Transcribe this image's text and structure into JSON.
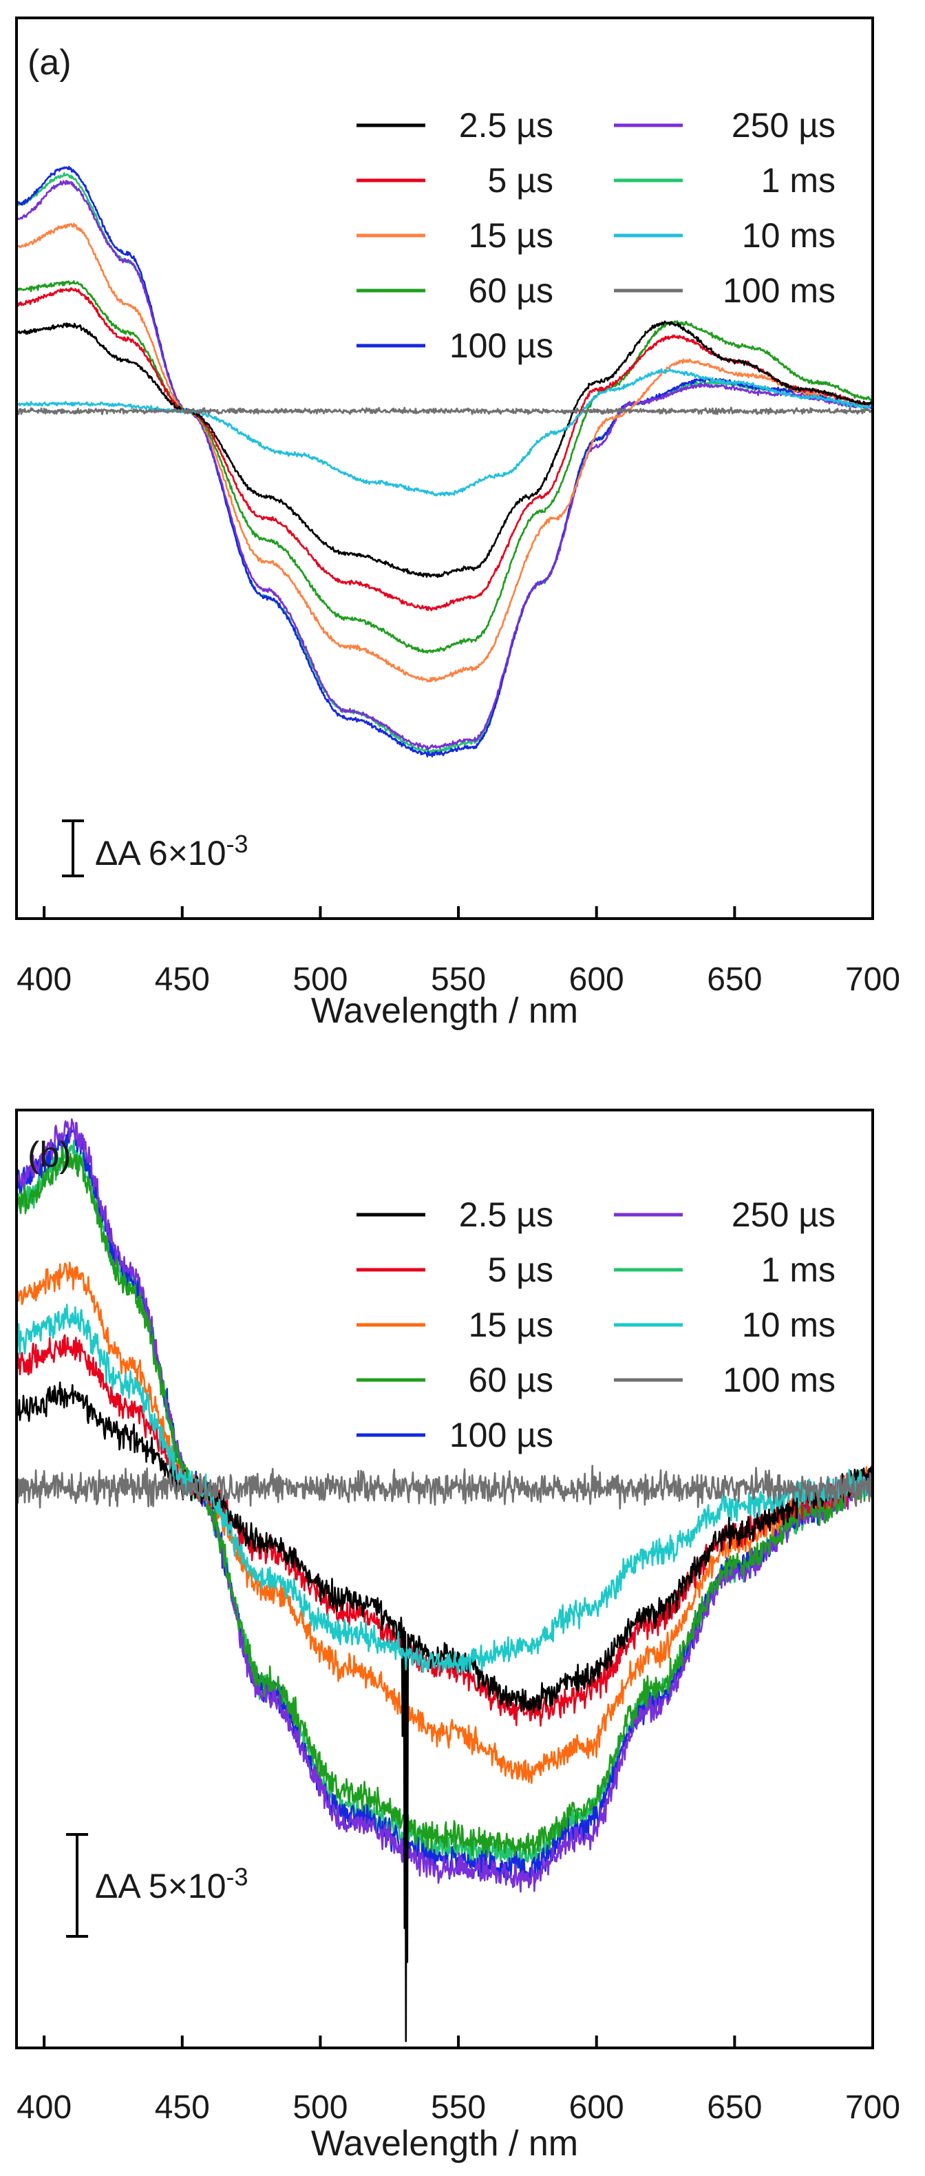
{
  "chart_data": [
    {
      "type": "line",
      "panel_label": "(a)",
      "xlabel": "Wavelength / nm",
      "ylabel": "",
      "xlim": [
        390,
        700
      ],
      "ylim": [
        -0.0355,
        0.0275
      ],
      "x_ticks": [
        400,
        450,
        500,
        550,
        600,
        650,
        700
      ],
      "x_tick_labels": [
        "400",
        "450",
        "500",
        "550",
        "600",
        "650",
        "700"
      ],
      "grid": false,
      "legend_position": "top-right",
      "scale_bar": {
        "label_prefix": "ΔA 6×10",
        "label_exponent": "-3",
        "value": 0.006
      },
      "series": [
        {
          "name": "2.5 µs",
          "color": "#000000",
          "noise": 0.00012,
          "points": [
            [
              390,
              0.0055
            ],
            [
              410,
              0.006
            ],
            [
              430,
              0.0035
            ],
            [
              452,
              0.0
            ],
            [
              480,
              -0.006
            ],
            [
              510,
              -0.01
            ],
            [
              540,
              -0.0115
            ],
            [
              555,
              -0.011
            ],
            [
              575,
              -0.006
            ],
            [
              600,
              0.002
            ],
            [
              625,
              0.0062
            ],
            [
              650,
              0.0035
            ],
            [
              675,
              0.0015
            ],
            [
              700,
              0.0005
            ]
          ]
        },
        {
          "name": "5 µs",
          "color": "#e8001c",
          "noise": 0.00012,
          "points": [
            [
              390,
              0.0075
            ],
            [
              410,
              0.0085
            ],
            [
              430,
              0.005
            ],
            [
              452,
              0.0
            ],
            [
              480,
              -0.0075
            ],
            [
              510,
              -0.012
            ],
            [
              540,
              -0.0138
            ],
            [
              555,
              -0.013
            ],
            [
              580,
              -0.006
            ],
            [
              600,
              0.0015
            ],
            [
              628,
              0.0052
            ],
            [
              650,
              0.0035
            ],
            [
              675,
              0.0015
            ],
            [
              700,
              0.0005
            ]
          ]
        },
        {
          "name": "15 µs",
          "color": "#ff8040",
          "noise": 0.00012,
          "points": [
            [
              390,
              0.0115
            ],
            [
              410,
              0.013
            ],
            [
              430,
              0.0075
            ],
            [
              452,
              0.0
            ],
            [
              480,
              -0.0105
            ],
            [
              510,
              -0.0165
            ],
            [
              540,
              -0.0188
            ],
            [
              555,
              -0.018
            ],
            [
              585,
              -0.0075
            ],
            [
              605,
              -0.0005
            ],
            [
              632,
              0.0035
            ],
            [
              655,
              0.0025
            ],
            [
              680,
              0.0012
            ],
            [
              700,
              0.0005
            ]
          ]
        },
        {
          "name": "60 µs",
          "color": "#1e9e1e",
          "noise": 0.00012,
          "points": [
            [
              390,
              0.0085
            ],
            [
              410,
              0.009
            ],
            [
              430,
              0.0055
            ],
            [
              452,
              0.0
            ],
            [
              480,
              -0.009
            ],
            [
              510,
              -0.0145
            ],
            [
              540,
              -0.0168
            ],
            [
              555,
              -0.016
            ],
            [
              580,
              -0.007
            ],
            [
              603,
              0.0015
            ],
            [
              628,
              0.0062
            ],
            [
              655,
              0.0045
            ],
            [
              680,
              0.002
            ],
            [
              700,
              0.0008
            ]
          ]
        },
        {
          "name": "100 µs",
          "color": "#1528e0",
          "noise": 0.00012,
          "points": [
            [
              390,
              0.0145
            ],
            [
              408,
              0.017
            ],
            [
              430,
              0.011
            ],
            [
              452,
              0.0
            ],
            [
              480,
              -0.013
            ],
            [
              510,
              -0.0215
            ],
            [
              540,
              -0.024
            ],
            [
              555,
              -0.0235
            ],
            [
              580,
              -0.012
            ],
            [
              600,
              -0.002
            ],
            [
              612,
              0.0005
            ],
            [
              640,
              0.0022
            ],
            [
              665,
              0.0015
            ],
            [
              700,
              0.0003
            ]
          ]
        },
        {
          "name": "250 µs",
          "color": "#7a2fd8",
          "noise": 0.00012,
          "points": [
            [
              390,
              0.0135
            ],
            [
              408,
              0.016
            ],
            [
              430,
              0.0105
            ],
            [
              452,
              0.0
            ],
            [
              480,
              -0.0125
            ],
            [
              510,
              -0.021
            ],
            [
              540,
              -0.0235
            ],
            [
              555,
              -0.023
            ],
            [
              580,
              -0.012
            ],
            [
              600,
              -0.0025
            ],
            [
              612,
              0.0005
            ],
            [
              640,
              0.0018
            ],
            [
              665,
              0.0012
            ],
            [
              700,
              0.0003
            ]
          ]
        },
        {
          "name": "1 ms",
          "color": "#22c46e",
          "noise": 0.00012,
          "points": [
            [
              390,
              0.0145
            ],
            [
              408,
              0.0165
            ],
            [
              430,
              0.0105
            ],
            [
              452,
              0.0
            ],
            [
              480,
              -0.013
            ],
            [
              510,
              -0.021
            ],
            [
              540,
              -0.0238
            ],
            [
              555,
              -0.0232
            ],
            [
              580,
              -0.012
            ],
            [
              600,
              -0.002
            ],
            [
              612,
              0.0005
            ],
            [
              640,
              0.002
            ],
            [
              665,
              0.0015
            ],
            [
              700,
              0.0003
            ]
          ]
        },
        {
          "name": "10 ms",
          "color": "#1fbfe0",
          "noise": 0.00012,
          "points": [
            [
              390,
              0.0005
            ],
            [
              420,
              0.0005
            ],
            [
              452,
              0.0
            ],
            [
              490,
              -0.003
            ],
            [
              520,
              -0.005
            ],
            [
              545,
              -0.0058
            ],
            [
              565,
              -0.0045
            ],
            [
              585,
              -0.0015
            ],
            [
              605,
              0.0015
            ],
            [
              625,
              0.0028
            ],
            [
              650,
              0.002
            ],
            [
              675,
              0.001
            ],
            [
              700,
              0.0003
            ]
          ]
        },
        {
          "name": "100 ms",
          "color": "#707070",
          "noise": 0.00015,
          "points": [
            [
              390,
              0.0
            ],
            [
              700,
              0.0
            ]
          ]
        }
      ]
    },
    {
      "type": "line",
      "panel_label": "(b)",
      "xlabel": "Wavelength / nm",
      "ylabel": "",
      "xlim": [
        390,
        700
      ],
      "ylim": [
        -0.0248,
        0.0167
      ],
      "x_ticks": [
        400,
        450,
        500,
        550,
        600,
        650,
        700
      ],
      "x_tick_labels": [
        "400",
        "450",
        "500",
        "550",
        "600",
        "650",
        "700"
      ],
      "grid": false,
      "legend_position": "top-right",
      "scale_bar": {
        "label_prefix": "ΔA 5×10",
        "label_exponent": "-3",
        "value": 0.005
      },
      "series": [
        {
          "name": "2.5 µs",
          "color": "#000000",
          "noise": 0.0005,
          "points": [
            [
              390,
              0.0035
            ],
            [
              410,
              0.004
            ],
            [
              430,
              0.0022
            ],
            [
              455,
              0.0
            ],
            [
              480,
              -0.0025
            ],
            [
              510,
              -0.005
            ],
            [
              545,
              -0.0075
            ],
            [
              575,
              -0.0095
            ],
            [
              595,
              -0.0085
            ],
            [
              620,
              -0.0055
            ],
            [
              650,
              -0.002
            ],
            [
              680,
              -0.0005
            ],
            [
              700,
              0.0005
            ]
          ],
          "spikes": [
            [
              531,
              -0.0245
            ],
            [
              530.4,
              -0.0195
            ],
            [
              531.6,
              -0.021
            ],
            [
              529.8,
              -0.011
            ]
          ]
        },
        {
          "name": "5 µs",
          "color": "#e8001c",
          "noise": 0.0005,
          "points": [
            [
              390,
              0.0055
            ],
            [
              410,
              0.0062
            ],
            [
              430,
              0.0035
            ],
            [
              455,
              0.0
            ],
            [
              480,
              -0.0028
            ],
            [
              510,
              -0.0055
            ],
            [
              545,
              -0.008
            ],
            [
              575,
              -0.01
            ],
            [
              595,
              -0.0092
            ],
            [
              620,
              -0.006
            ],
            [
              650,
              -0.002
            ],
            [
              680,
              -0.0005
            ],
            [
              700,
              0.0003
            ]
          ]
        },
        {
          "name": "15 µs",
          "color": "#ff6a10",
          "noise": 0.0005,
          "points": [
            [
              390,
              0.0085
            ],
            [
              410,
              0.0095
            ],
            [
              430,
              0.0055
            ],
            [
              455,
              0.0
            ],
            [
              480,
              -0.0045
            ],
            [
              510,
              -0.008
            ],
            [
              545,
              -0.0108
            ],
            [
              575,
              -0.0125
            ],
            [
              595,
              -0.0115
            ],
            [
              620,
              -0.0075
            ],
            [
              650,
              -0.0025
            ],
            [
              680,
              -0.0005
            ],
            [
              700,
              0.0003
            ]
          ]
        },
        {
          "name": "60 µs",
          "color": "#1e9e1e",
          "noise": 0.0005,
          "points": [
            [
              390,
              0.0125
            ],
            [
              410,
              0.0145
            ],
            [
              430,
              0.009
            ],
            [
              455,
              0.0
            ],
            [
              480,
              -0.0085
            ],
            [
              510,
              -0.0135
            ],
            [
              545,
              -0.0155
            ],
            [
              575,
              -0.0158
            ],
            [
              595,
              -0.0142
            ],
            [
              620,
              -0.009
            ],
            [
              650,
              -0.0035
            ],
            [
              680,
              -0.001
            ],
            [
              700,
              0.0003
            ]
          ]
        },
        {
          "name": "100 µs",
          "color": "#1528e0",
          "noise": 0.0005,
          "points": [
            [
              390,
              0.0135
            ],
            [
              410,
              0.0155
            ],
            [
              430,
              0.0095
            ],
            [
              455,
              0.0
            ],
            [
              480,
              -0.009
            ],
            [
              510,
              -0.0145
            ],
            [
              545,
              -0.0165
            ],
            [
              575,
              -0.0168
            ],
            [
              595,
              -0.015
            ],
            [
              620,
              -0.0095
            ],
            [
              650,
              -0.0035
            ],
            [
              680,
              -0.001
            ],
            [
              700,
              0.0003
            ]
          ]
        },
        {
          "name": "250 µs",
          "color": "#7a2fd8",
          "noise": 0.0005,
          "points": [
            [
              390,
              0.0135
            ],
            [
              410,
              0.0158
            ],
            [
              430,
              0.0098
            ],
            [
              455,
              0.0
            ],
            [
              480,
              -0.0092
            ],
            [
              510,
              -0.0148
            ],
            [
              545,
              -0.0168
            ],
            [
              575,
              -0.0172
            ],
            [
              595,
              -0.0155
            ],
            [
              620,
              -0.0098
            ],
            [
              650,
              -0.0038
            ],
            [
              680,
              -0.001
            ],
            [
              700,
              0.0003
            ]
          ]
        },
        {
          "name": "1 ms",
          "color": "#22c46e",
          "noise": 0.0005,
          "points": [
            [
              390,
              0.0125
            ],
            [
              410,
              0.0148
            ],
            [
              430,
              0.0092
            ],
            [
              455,
              0.0
            ],
            [
              480,
              -0.0088
            ],
            [
              510,
              -0.0142
            ],
            [
              545,
              -0.016
            ],
            [
              575,
              -0.0162
            ],
            [
              595,
              -0.0145
            ],
            [
              620,
              -0.0092
            ],
            [
              650,
              -0.0036
            ],
            [
              680,
              -0.001
            ],
            [
              700,
              0.0003
            ]
          ]
        },
        {
          "name": "10 ms",
          "color": "#1ec8c8",
          "noise": 0.0005,
          "points": [
            [
              390,
              0.0065
            ],
            [
              410,
              0.0075
            ],
            [
              430,
              0.0045
            ],
            [
              455,
              0.0
            ],
            [
              480,
              -0.004
            ],
            [
              510,
              -0.0065
            ],
            [
              545,
              -0.0078
            ],
            [
              570,
              -0.0072
            ],
            [
              595,
              -0.0055
            ],
            [
              620,
              -0.003
            ],
            [
              650,
              -0.0008
            ],
            [
              680,
              -0.0002
            ],
            [
              700,
              0.0002
            ]
          ]
        },
        {
          "name": "100 ms",
          "color": "#707070",
          "noise": 0.0006,
          "points": [
            [
              390,
              0.0
            ],
            [
              700,
              0.0
            ]
          ]
        }
      ]
    }
  ]
}
